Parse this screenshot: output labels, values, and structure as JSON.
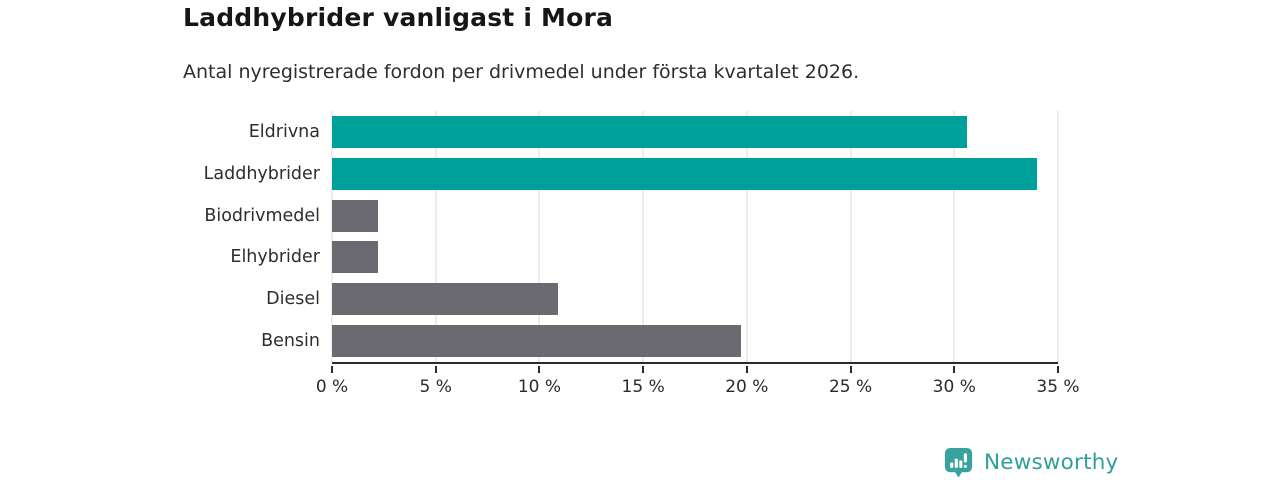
{
  "chart_data": {
    "type": "bar",
    "orientation": "horizontal",
    "title": "Laddhybrider vanligast i Mora",
    "subtitle": "Antal nyregistrerade fordon per drivmedel under första kvartalet 2026.",
    "categories": [
      "Eldrivna",
      "Laddhybrider",
      "Biodrivmedel",
      "Elhybrider",
      "Diesel",
      "Bensin"
    ],
    "values": [
      30.6,
      34.0,
      2.2,
      2.2,
      10.9,
      19.7
    ],
    "unit": "%",
    "xlim": [
      0,
      35
    ],
    "x_ticks": [
      0,
      5,
      10,
      15,
      20,
      25,
      30,
      35
    ],
    "x_tick_suffix": " %",
    "grid": true,
    "legend": "none",
    "colors": {
      "highlight": "#00a09a",
      "default": "#6b6a70",
      "bar_colors": [
        "#00a09a",
        "#00a09a",
        "#6b6a70",
        "#6b6a70",
        "#6b6a70",
        "#6b6a70"
      ],
      "gridline": "#d9d9d9",
      "axis": "#2b2b2b",
      "title_text": "#161616",
      "body_text": "#2e2e2e",
      "brand": "#2f9f99"
    }
  },
  "footer": {
    "brand": "Newsworthy"
  }
}
